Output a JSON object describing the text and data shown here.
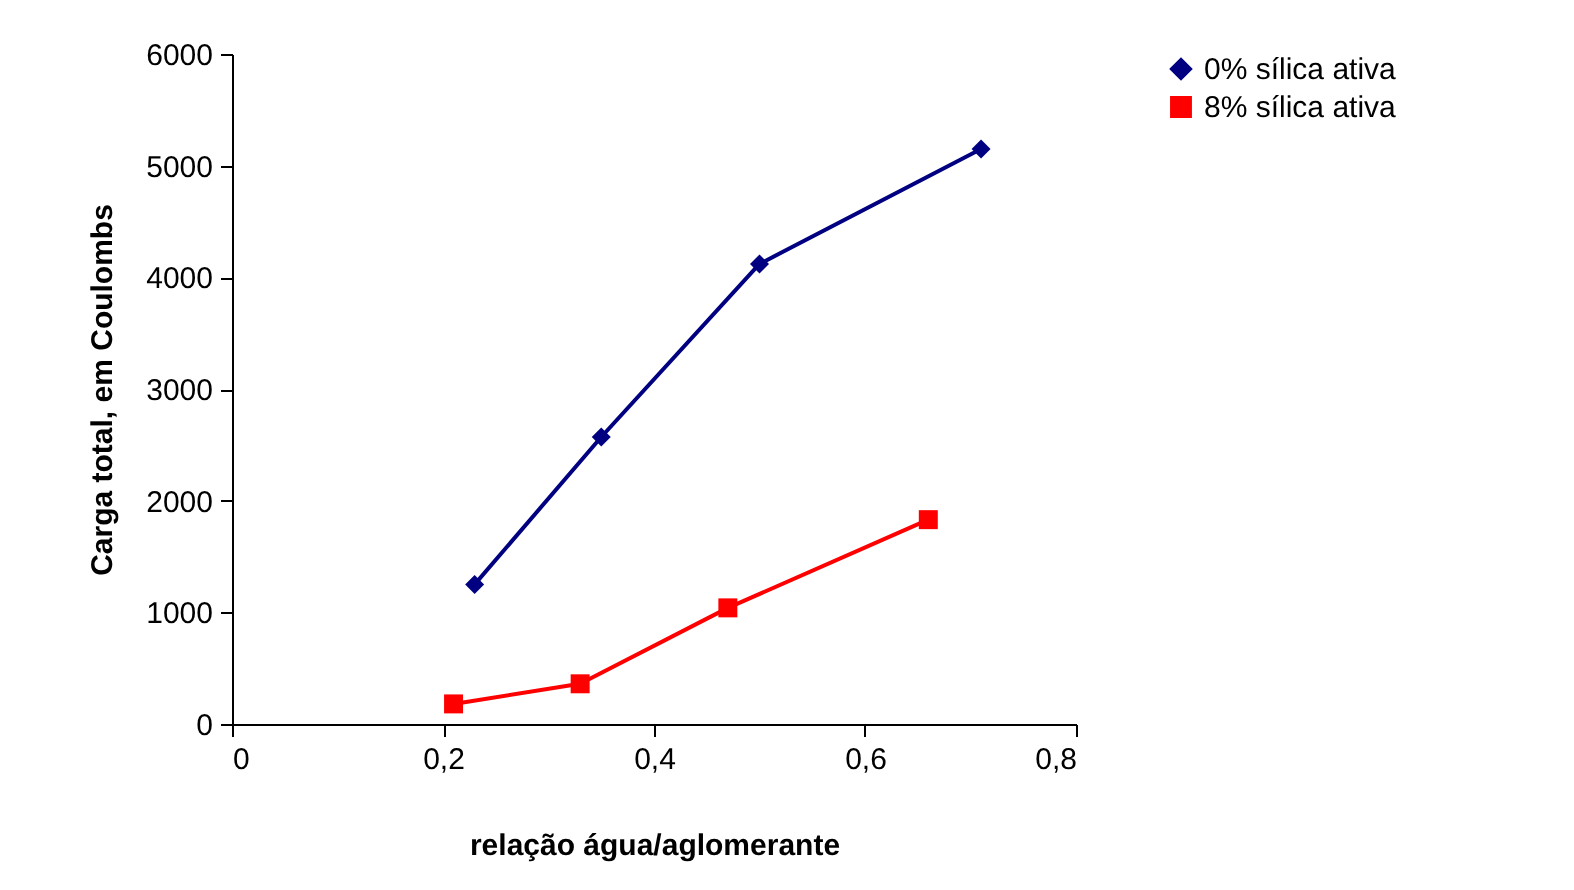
{
  "chart_data": {
    "type": "line",
    "xlabel": "relação água/aglomerante",
    "ylabel": "Carga total, em Coulombs",
    "series": [
      {
        "name": "0% sílica ativa",
        "color": "#000080",
        "marker": "diamond",
        "x": [
          0.23,
          0.35,
          0.5,
          0.71
        ],
        "values": [
          1250,
          2570,
          4120,
          5150
        ]
      },
      {
        "name": "8% sílica ativa",
        "color": "#ff0000",
        "marker": "square",
        "x": [
          0.21,
          0.33,
          0.47,
          0.66
        ],
        "values": [
          180,
          360,
          1040,
          1830
        ]
      }
    ],
    "xlim": [
      0,
      0.8
    ],
    "xticks": [
      0,
      {
        "value": 0.2,
        "label": "0,2"
      },
      {
        "value": 0.4,
        "label": "0,4"
      },
      {
        "value": 0.6,
        "label": "0,6"
      },
      {
        "value": 0.8,
        "label": "0,8"
      }
    ],
    "ylim": [
      0,
      6000
    ],
    "yticks": [
      0,
      1000,
      2000,
      3000,
      4000,
      5000,
      6000
    ],
    "grid": false,
    "legend": "right",
    "line_style": "solid"
  }
}
